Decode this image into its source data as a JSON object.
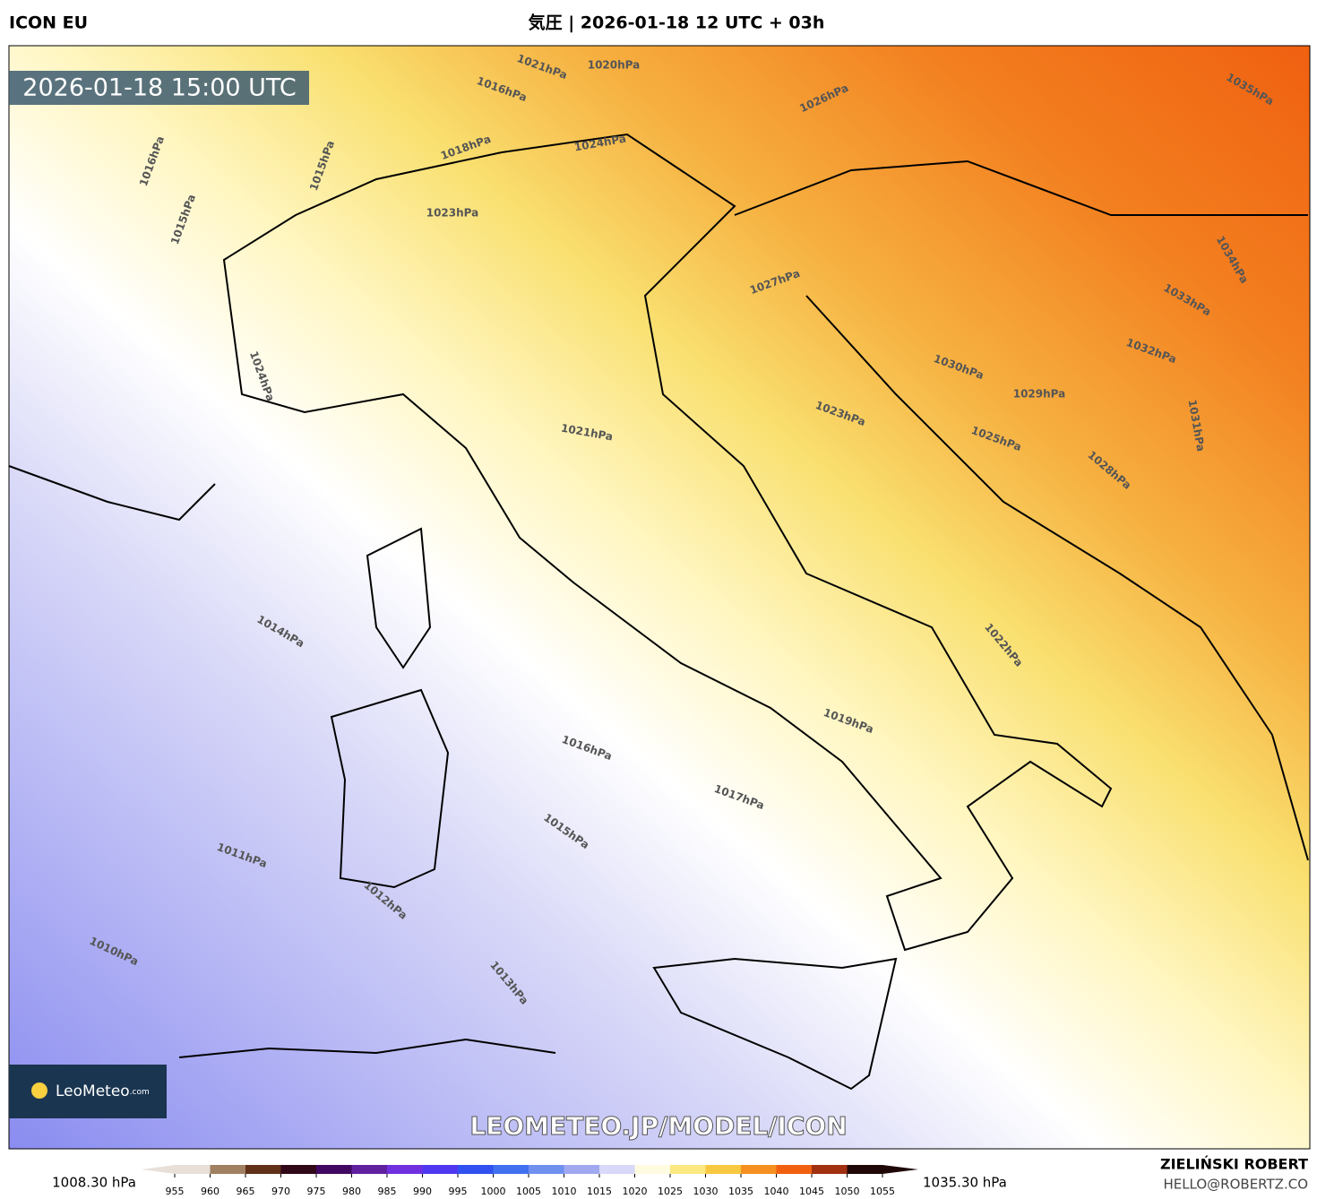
{
  "header": {
    "model": "ICON EU",
    "title": "気圧 | 2026-01-18 12 UTC + 03h"
  },
  "map": {
    "timestamp": "2026-01-18 15:00 UTC",
    "watermark": "LEOMETEO.JP/MODEL/ICON",
    "logo": {
      "name": "LeoMeteo",
      "suffix": ".com"
    },
    "isobar_labels": [
      "1021hPa",
      "1020hPa",
      "1016hPa",
      "1026hPa",
      "1035hPa",
      "1024hPa",
      "1018hPa",
      "1016hPa",
      "1015hPa",
      "1023hPa",
      "1015hPa",
      "1027hPa",
      "1034hPa",
      "1033hPa",
      "1032hPa",
      "1030hPa",
      "1029hPa",
      "1024hPa",
      "1023hPa",
      "1021hPa",
      "1025hPa",
      "1031hPa",
      "1028hPa",
      "1014hPa",
      "1022hPa",
      "1019hPa",
      "1016hPa",
      "1017hPa",
      "1015hPa",
      "1011hPa",
      "1012hPa",
      "1010hPa",
      "1013hPa"
    ]
  },
  "colorbar": {
    "min_label": "1008.30 hPa",
    "max_label": "1035.30 hPa",
    "ticks": [
      955,
      960,
      965,
      970,
      975,
      980,
      985,
      990,
      995,
      1000,
      1005,
      1010,
      1015,
      1020,
      1025,
      1030,
      1035,
      1040,
      1045,
      1050,
      1055
    ],
    "colors": [
      "#e8e0d8",
      "#a08060",
      "#603018",
      "#300818",
      "#400860",
      "#6020a0",
      "#7030e0",
      "#5038f0",
      "#3050f0",
      "#4070f0",
      "#7090f0",
      "#a0a8f0",
      "#d8d8f8",
      "#fffbe0",
      "#fbe880",
      "#f8c840",
      "#f59020",
      "#f06010",
      "#a03010",
      "#200808"
    ]
  },
  "credits": {
    "author": "ZIELIŃSKI ROBERT",
    "contact": "HELLO@ROBERTZ.CO"
  }
}
